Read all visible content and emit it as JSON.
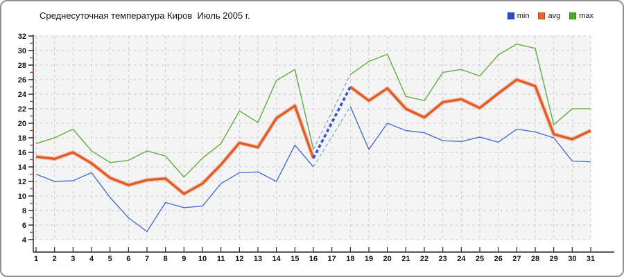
{
  "legend": {
    "items": [
      {
        "label": "min",
        "color": "#2b46d8"
      },
      {
        "label": "avg",
        "color": "#e8632e"
      },
      {
        "label": "max",
        "color": "#4aae22"
      }
    ]
  },
  "chart_data": {
    "type": "line",
    "title": "Среднесуточная температура Киров  Июль 2005 г.",
    "xlabel": "",
    "ylabel": "",
    "ylim": [
      4,
      32
    ],
    "y_ticks": [
      32,
      30,
      28,
      26,
      24,
      22,
      20,
      18,
      16,
      14,
      12,
      10,
      8,
      6,
      4
    ],
    "y_minor_ticks": [
      31,
      29,
      27,
      25,
      23,
      21,
      19,
      17,
      15,
      13,
      11,
      9,
      7,
      5
    ],
    "x_ticks": [
      1,
      2,
      3,
      4,
      5,
      6,
      7,
      8,
      9,
      10,
      11,
      12,
      13,
      14,
      15,
      16,
      17,
      18,
      19,
      20,
      21,
      22,
      23,
      24,
      25,
      26,
      27,
      28,
      29,
      30,
      31
    ],
    "grid": true,
    "legend_position": "top-right",
    "missing_days": [
      17
    ],
    "series": [
      {
        "name": "min",
        "color": "#4a6fd8",
        "values": [
          13.0,
          12.0,
          12.1,
          13.2,
          9.8,
          7.0,
          5.1,
          9.1,
          8.4,
          8.6,
          11.7,
          13.2,
          13.3,
          12.0,
          17.0,
          14.0,
          null,
          22.3,
          16.4,
          20.0,
          19.0,
          18.7,
          17.6,
          17.5,
          18.1,
          17.4,
          19.2,
          18.8,
          18.0,
          14.8,
          14.7
        ]
      },
      {
        "name": "avg",
        "color": "#e05a22",
        "values": [
          15.4,
          15.1,
          16.0,
          14.5,
          12.5,
          11.5,
          12.2,
          12.4,
          10.3,
          11.7,
          14.3,
          17.3,
          16.7,
          20.7,
          22.4,
          15.2,
          null,
          25.0,
          23.1,
          24.8,
          22.0,
          20.8,
          22.9,
          23.3,
          22.1,
          24.1,
          26.0,
          25.1,
          18.5,
          17.8,
          19.0
        ]
      },
      {
        "name": "max",
        "color": "#68b14a",
        "values": [
          17.2,
          18.0,
          19.2,
          16.2,
          14.6,
          14.9,
          16.2,
          15.5,
          12.6,
          15.2,
          17.2,
          21.7,
          20.1,
          25.9,
          27.4,
          16.4,
          null,
          26.7,
          28.5,
          29.5,
          23.7,
          23.1,
          27.0,
          27.4,
          26.5,
          29.4,
          30.9,
          30.3,
          19.8,
          22.0,
          22.0
        ]
      }
    ],
    "interpolation": {
      "style": "dashed",
      "avg_color": "#3d56d6",
      "minmax_color": "#8aa2ec"
    },
    "colors": {
      "plot_bg": "#f4f4f4",
      "gridline": "#cccccc",
      "axis": "#222222",
      "minor_tick": "#d23333",
      "label": "#111111"
    }
  }
}
